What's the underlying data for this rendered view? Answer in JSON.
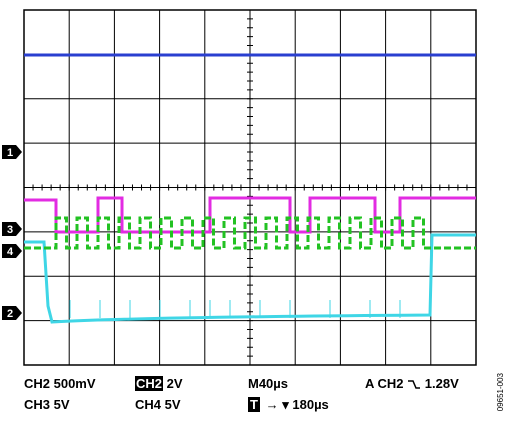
{
  "channels": {
    "ch1": {
      "marker": "1",
      "color": "#2a3fd0"
    },
    "ch2": {
      "marker": "2",
      "color": "#3fd6e6"
    },
    "ch3": {
      "marker": "3",
      "color": "#e22be2"
    },
    "ch4": {
      "marker": "4",
      "color": "#22c222"
    }
  },
  "readouts": {
    "ch2_scale": "CH2  500mV",
    "ch2_box": "CH2",
    "ch2_box_value": "2V",
    "ch3_scale": "CH3  5V",
    "ch4_scale": "CH4  5V",
    "timebase": "M40µs",
    "trigger_prefix": "A  CH2",
    "trigger_level": "1.28V",
    "trigger_box": "T",
    "trigger_delay": "→ ▾ 180µs"
  },
  "figure_id": "09651-003",
  "grid": {
    "divisions_x": 10,
    "divisions_y": 8,
    "color": "#000000"
  }
}
